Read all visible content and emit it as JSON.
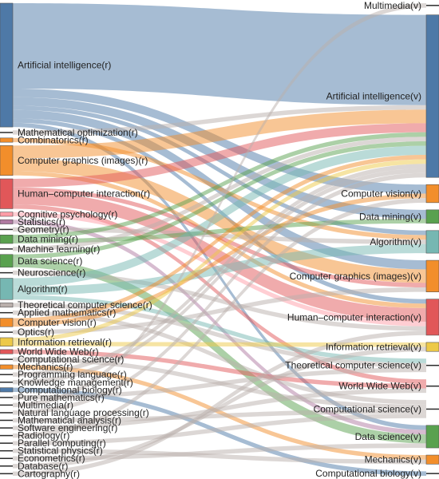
{
  "chart_data": {
    "type": "sankey",
    "colors": {
      "blue": "#4e79a7",
      "orange": "#f28e2b",
      "red": "#e15759",
      "teal": "#76b7b2",
      "green": "#59a14f",
      "yellow": "#edc948",
      "purple": "#b07aa1",
      "pink": "#ff9da7",
      "gray": "#bab0ac",
      "dark": "#2b2b2b"
    },
    "sources": [
      {
        "id": "s_ai",
        "label": "Artificial intelligence(r)",
        "color": "blue"
      },
      {
        "id": "s_mo",
        "label": "Mathematical optimization(r)",
        "color": "dark"
      },
      {
        "id": "s_comb",
        "label": "Combinatorics(r)",
        "color": "orange"
      },
      {
        "id": "s_cg",
        "label": "Computer graphics (images)(r)",
        "color": "orange"
      },
      {
        "id": "s_hci",
        "label": "Human–computer interaction(r)",
        "color": "red"
      },
      {
        "id": "s_cp",
        "label": "Cognitive psychology(r)",
        "color": "pink"
      },
      {
        "id": "s_stat",
        "label": "Statistics(r)",
        "color": "purple"
      },
      {
        "id": "s_geo",
        "label": "Geometry(r)",
        "color": "dark"
      },
      {
        "id": "s_dm",
        "label": "Data mining(r)",
        "color": "green"
      },
      {
        "id": "s_ml",
        "label": "Machine learning(r)",
        "color": "dark"
      },
      {
        "id": "s_ds",
        "label": "Data science(r)",
        "color": "green"
      },
      {
        "id": "s_ns",
        "label": "Neuroscience(r)",
        "color": "dark"
      },
      {
        "id": "s_alg",
        "label": "Algorithm(r)",
        "color": "teal"
      },
      {
        "id": "s_tcs",
        "label": "Theoretical computer science(r)",
        "color": "gray"
      },
      {
        "id": "s_am",
        "label": "Applied mathematics(r)",
        "color": "dark"
      },
      {
        "id": "s_cv",
        "label": "Computer vision(r)",
        "color": "orange"
      },
      {
        "id": "s_opt",
        "label": "Optics(r)",
        "color": "dark"
      },
      {
        "id": "s_ir",
        "label": "Information retrieval(r)",
        "color": "yellow"
      },
      {
        "id": "s_www",
        "label": "World Wide Web(r)",
        "color": "red"
      },
      {
        "id": "s_cs",
        "label": "Computational science(r)",
        "color": "dark"
      },
      {
        "id": "s_mech",
        "label": "Mechanics(r)",
        "color": "orange"
      },
      {
        "id": "s_pl",
        "label": "Programming language(r)",
        "color": "dark"
      },
      {
        "id": "s_km",
        "label": "Knowledge management(r)",
        "color": "dark"
      },
      {
        "id": "s_cb",
        "label": "Computational biology(r)",
        "color": "blue"
      },
      {
        "id": "s_pm",
        "label": "Pure mathematics(r)",
        "color": "dark"
      },
      {
        "id": "s_mm",
        "label": "Multimedia(r)",
        "color": "dark"
      },
      {
        "id": "s_nlp",
        "label": "Natural language processing(r)",
        "color": "dark"
      },
      {
        "id": "s_ma",
        "label": "Mathematical analysis(r)",
        "color": "dark"
      },
      {
        "id": "s_se",
        "label": "Software engineering(r)",
        "color": "dark"
      },
      {
        "id": "s_rad",
        "label": "Radiology(r)",
        "color": "dark"
      },
      {
        "id": "s_pc",
        "label": "Parallel computing(r)",
        "color": "dark"
      },
      {
        "id": "s_sp",
        "label": "Statistical physics(r)",
        "color": "dark"
      },
      {
        "id": "s_eco",
        "label": "Econometrics(r)",
        "color": "dark"
      },
      {
        "id": "s_db",
        "label": "Database(r)",
        "color": "dark"
      },
      {
        "id": "s_cart",
        "label": "Cartography(r)",
        "color": "dark"
      }
    ],
    "targets": [
      {
        "id": "t_mm",
        "label": "Multimedia(v)",
        "color": "dark"
      },
      {
        "id": "t_ai",
        "label": "Artificial intelligence(v)",
        "color": "blue"
      },
      {
        "id": "t_cv",
        "label": "Computer vision(v)",
        "color": "orange"
      },
      {
        "id": "t_dm",
        "label": "Data mining(v)",
        "color": "green"
      },
      {
        "id": "t_alg",
        "label": "Algorithm(v)",
        "color": "teal"
      },
      {
        "id": "t_cg",
        "label": "Computer graphics (images)(v)",
        "color": "orange"
      },
      {
        "id": "t_hci",
        "label": "Human–computer interaction(v)",
        "color": "red"
      },
      {
        "id": "t_ir",
        "label": "Information retrieval(v)",
        "color": "yellow"
      },
      {
        "id": "t_tcs",
        "label": "Theoretical computer science(v)",
        "color": "dark"
      },
      {
        "id": "t_www",
        "label": "World Wide Web(v)",
        "color": "dark"
      },
      {
        "id": "t_cs",
        "label": "Computational science(v)",
        "color": "dark"
      },
      {
        "id": "t_ds",
        "label": "Data science(v)",
        "color": "green"
      },
      {
        "id": "t_mech",
        "label": "Mechanics(v)",
        "color": "orange"
      },
      {
        "id": "t_cb",
        "label": "Computational biology(v)",
        "color": "dark"
      }
    ],
    "links": [
      {
        "source": "s_ai",
        "target": "t_ai",
        "value": 20
      },
      {
        "source": "s_ai",
        "target": "t_cv",
        "value": 2
      },
      {
        "source": "s_ai",
        "target": "t_dm",
        "value": 2
      },
      {
        "source": "s_ai",
        "target": "t_alg",
        "value": 1
      },
      {
        "source": "s_ai",
        "target": "t_cg",
        "value": 2
      },
      {
        "source": "s_ai",
        "target": "t_hci",
        "value": 1
      },
      {
        "source": "s_ai",
        "target": "t_ds",
        "value": 1
      },
      {
        "source": "s_mo",
        "target": "t_ai",
        "value": 1
      },
      {
        "source": "s_comb",
        "target": "t_alg",
        "value": 1
      },
      {
        "source": "s_cg",
        "target": "t_ai",
        "value": 3
      },
      {
        "source": "s_cg",
        "target": "t_cg",
        "value": 3
      },
      {
        "source": "s_cg",
        "target": "t_hci",
        "value": 1
      },
      {
        "source": "s_hci",
        "target": "t_ai",
        "value": 2
      },
      {
        "source": "s_hci",
        "target": "t_hci",
        "value": 3
      },
      {
        "source": "s_hci",
        "target": "t_cg",
        "value": 1
      },
      {
        "source": "s_hci",
        "target": "t_www",
        "value": 1
      },
      {
        "source": "s_cp",
        "target": "t_hci",
        "value": 1
      },
      {
        "source": "s_stat",
        "target": "t_ds",
        "value": 1
      },
      {
        "source": "s_geo",
        "target": "t_alg",
        "value": 1
      },
      {
        "source": "s_dm",
        "target": "t_dm",
        "value": 1
      },
      {
        "source": "s_dm",
        "target": "t_ai",
        "value": 1
      },
      {
        "source": "s_ml",
        "target": "t_ai",
        "value": 1
      },
      {
        "source": "s_ds",
        "target": "t_ai",
        "value": 1
      },
      {
        "source": "s_ds",
        "target": "t_ds",
        "value": 2
      },
      {
        "source": "s_ns",
        "target": "t_hci",
        "value": 1
      },
      {
        "source": "s_alg",
        "target": "t_ai",
        "value": 2
      },
      {
        "source": "s_alg",
        "target": "t_alg",
        "value": 2
      },
      {
        "source": "s_alg",
        "target": "t_tcs",
        "value": 1
      },
      {
        "source": "s_tcs",
        "target": "t_tcs",
        "value": 1
      },
      {
        "source": "s_am",
        "target": "t_cs",
        "value": 1
      },
      {
        "source": "s_cv",
        "target": "t_cv",
        "value": 1
      },
      {
        "source": "s_cv",
        "target": "t_ai",
        "value": 1
      },
      {
        "source": "s_opt",
        "target": "t_cg",
        "value": 1
      },
      {
        "source": "s_ir",
        "target": "t_ir",
        "value": 1
      },
      {
        "source": "s_ir",
        "target": "t_ai",
        "value": 1
      },
      {
        "source": "s_www",
        "target": "t_www",
        "value": 1
      },
      {
        "source": "s_cs",
        "target": "t_cs",
        "value": 1
      },
      {
        "source": "s_mech",
        "target": "t_mech",
        "value": 1
      },
      {
        "source": "s_pl",
        "target": "t_ai",
        "value": 1
      },
      {
        "source": "s_km",
        "target": "t_ai",
        "value": 1
      },
      {
        "source": "s_cb",
        "target": "t_cb",
        "value": 1
      },
      {
        "source": "s_pm",
        "target": "t_tcs",
        "value": 1
      },
      {
        "source": "s_mm",
        "target": "t_mm",
        "value": 1
      },
      {
        "source": "s_nlp",
        "target": "t_ai",
        "value": 1
      },
      {
        "source": "s_ma",
        "target": "t_cs",
        "value": 1
      },
      {
        "source": "s_se",
        "target": "t_www",
        "value": 1
      },
      {
        "source": "s_rad",
        "target": "t_cv",
        "value": 1
      },
      {
        "source": "s_pc",
        "target": "t_cs",
        "value": 1
      },
      {
        "source": "s_sp",
        "target": "t_mech",
        "value": 1
      },
      {
        "source": "s_eco",
        "target": "t_ds",
        "value": 1
      },
      {
        "source": "s_db",
        "target": "t_ir",
        "value": 1
      },
      {
        "source": "s_cart",
        "target": "t_hci",
        "value": 1
      }
    ]
  }
}
